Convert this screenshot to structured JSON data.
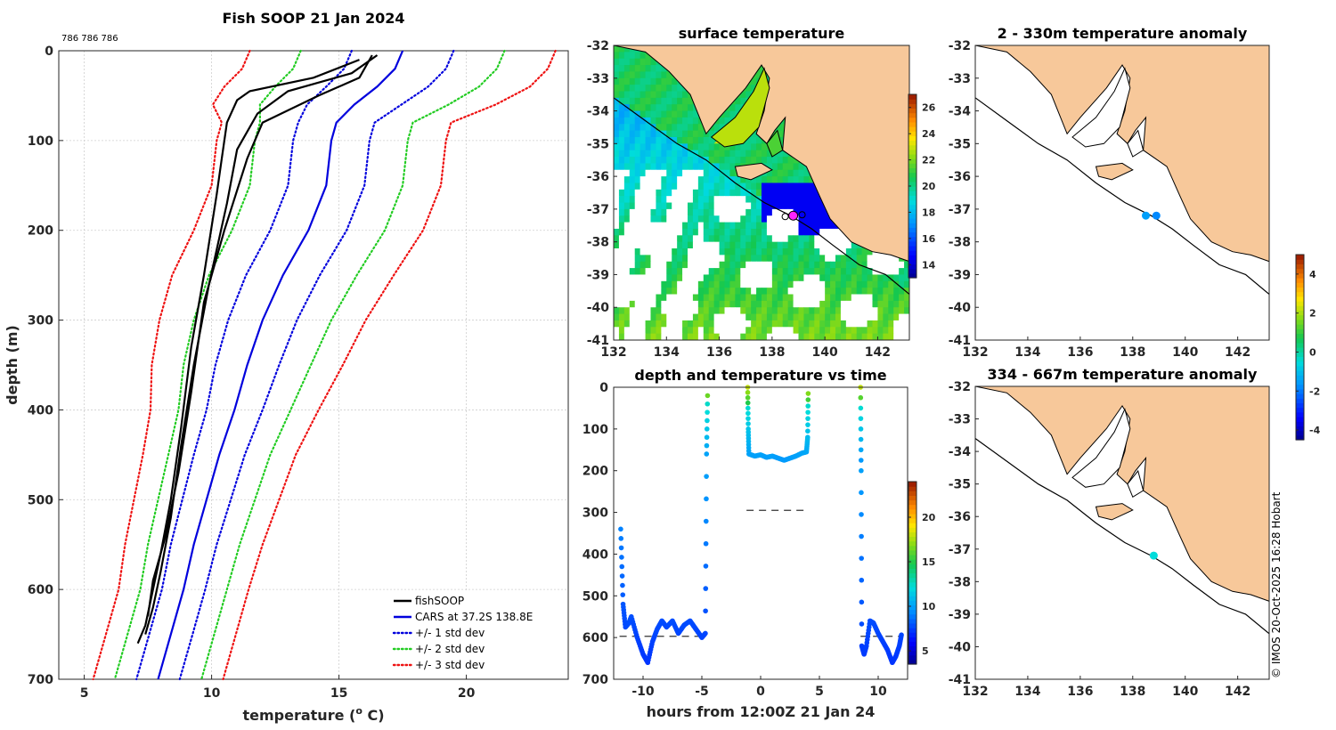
{
  "chart_data": [
    {
      "type": "line",
      "title": "Fish SOOP 21 Jan 2024",
      "annotation": "786 786 786",
      "xlabel": "temperature (",
      "xlabel_sup": "o",
      "xlabel_end": " C)",
      "ylabel": "depth (m)",
      "xlim": [
        4,
        24
      ],
      "ylim": [
        0,
        700
      ],
      "xticks": [
        5,
        10,
        15,
        20
      ],
      "yticks": [
        0,
        100,
        200,
        300,
        400,
        500,
        600,
        700
      ],
      "legend": [
        {
          "label": "fishSOOP",
          "color": "#000000",
          "style": "solid"
        },
        {
          "label": "CARS at 37.2S 138.8E",
          "color": "#0000dd",
          "style": "solid"
        },
        {
          "label": "+/- 1 std dev",
          "color": "#0000dd",
          "style": "dotted"
        },
        {
          "label": "+/- 2 std dev",
          "color": "#22cc22",
          "style": "dotted"
        },
        {
          "label": "+/- 3 std dev",
          "color": "#ee1111",
          "style": "dotted"
        }
      ],
      "depths": [
        0,
        20,
        40,
        60,
        80,
        100,
        150,
        200,
        250,
        300,
        350,
        400,
        450,
        500,
        550,
        600,
        650,
        700
      ],
      "cars_mean": [
        17.5,
        17.2,
        16.5,
        15.6,
        14.9,
        14.7,
        14.5,
        13.8,
        12.8,
        12.0,
        11.4,
        10.9,
        10.3,
        9.8,
        9.3,
        8.9,
        8.4,
        7.9
      ],
      "cars_std1": [
        2.0,
        2.0,
        2.0,
        1.85,
        1.5,
        1.5,
        1.5,
        1.5,
        1.45,
        1.35,
        1.25,
        1.1,
        1.0,
        0.95,
        0.9,
        0.85,
        0.85,
        0.85
      ],
      "fishsoop_casts": [
        {
          "depths": [
            10,
            30,
            45,
            55,
            80,
            120,
            160,
            250,
            330,
            420,
            500,
            560,
            600,
            640,
            660
          ],
          "temps": [
            15.8,
            14.0,
            11.5,
            11.0,
            10.6,
            10.4,
            10.2,
            9.7,
            9.2,
            8.8,
            8.4,
            8.0,
            7.7,
            7.4,
            7.1
          ]
        },
        {
          "depths": [
            5,
            25,
            45,
            70,
            110,
            170,
            260,
            350,
            440,
            520,
            580,
            620,
            650
          ],
          "temps": [
            16.5,
            15.5,
            13.0,
            11.8,
            11.0,
            10.6,
            9.9,
            9.3,
            8.8,
            8.4,
            8.0,
            7.7,
            7.4
          ]
        },
        {
          "depths": [
            5,
            30,
            50,
            80,
            120,
            200,
            280,
            380,
            470,
            540,
            590,
            630
          ],
          "temps": [
            16.3,
            15.8,
            14.2,
            12.0,
            11.4,
            10.5,
            9.7,
            9.2,
            8.7,
            8.2,
            7.7,
            7.5
          ]
        }
      ]
    },
    {
      "type": "heatmap",
      "title": "surface temperature",
      "xlim": [
        132,
        143.2
      ],
      "ylim": [
        -41,
        -32
      ],
      "xticks": [
        132,
        134,
        136,
        138,
        140,
        142
      ],
      "yticks": [
        -32,
        -33,
        -34,
        -35,
        -36,
        -37,
        -38,
        -39,
        -40,
        -41
      ],
      "colorbar_ticks": [
        14,
        16,
        18,
        20,
        22,
        24,
        26
      ],
      "colorbar_range": [
        13,
        27
      ],
      "markers": [
        {
          "lon": 138.8,
          "lat": -37.2
        }
      ]
    },
    {
      "type": "heatmap",
      "title": "2 - 330m temperature anomaly",
      "xlim": [
        132,
        143.2
      ],
      "ylim": [
        -41,
        -32
      ],
      "xticks": [
        132,
        134,
        136,
        138,
        140,
        142
      ],
      "yticks": [
        -32,
        -33,
        -34,
        -35,
        -36,
        -37,
        -38,
        -39,
        -40,
        -41
      ],
      "points": [
        {
          "lon": 138.5,
          "lat": -37.2,
          "value": -1.5
        },
        {
          "lon": 138.9,
          "lat": -37.2,
          "value": -1.8
        }
      ]
    },
    {
      "type": "heatmap",
      "title": "334 - 667m temperature anomaly",
      "xlim": [
        132,
        143.2
      ],
      "ylim": [
        -41,
        -32
      ],
      "xticks": [
        132,
        134,
        136,
        138,
        140,
        142
      ],
      "yticks": [
        -32,
        -33,
        -34,
        -35,
        -36,
        -37,
        -38,
        -39,
        -40,
        -41
      ],
      "points": [
        {
          "lon": 138.8,
          "lat": -37.2,
          "value": -0.5
        }
      ],
      "colorbar_ticks": [
        -4,
        -2,
        0,
        2,
        4
      ],
      "colorbar_range": [
        -4.5,
        5
      ]
    },
    {
      "type": "scatter",
      "title": "depth and temperature vs time",
      "xlabel": "hours from 12:00Z 21 Jan 24",
      "xlim": [
        -12.5,
        12.5
      ],
      "ylim": [
        0,
        700
      ],
      "xticks": [
        -10,
        -5,
        0,
        5,
        10
      ],
      "yticks": [
        0,
        100,
        200,
        300,
        400,
        500,
        600,
        700
      ],
      "colorbar_ticks": [
        5,
        10,
        15,
        20
      ],
      "colorbar_range": [
        3.5,
        24
      ],
      "dashed_levels": [
        {
          "x0": -12,
          "x1": -4.6,
          "depth": 597
        },
        {
          "x0": -1.2,
          "x1": 4.0,
          "depth": 295
        },
        {
          "x0": 8.5,
          "x1": 12,
          "depth": 597
        }
      ],
      "segments": [
        {
          "hours": [
            -11.9,
            -11.7,
            -11.5,
            -11.2,
            -11,
            -10.5,
            -10,
            -9.6,
            -9.2,
            -8.8,
            -8.4,
            -8,
            -7.5,
            -7,
            -6.5,
            -6,
            -5.5,
            -5,
            -4.7,
            -4.6,
            -4.5
          ],
          "depths": [
            340,
            520,
            575,
            565,
            550,
            600,
            640,
            660,
            610,
            580,
            560,
            575,
            560,
            590,
            570,
            560,
            580,
            600,
            590,
            160,
            0
          ]
        },
        {
          "hours": [
            -1.1,
            -1.05,
            -1,
            -0.5,
            0,
            0.5,
            1,
            1.5,
            2,
            2.5,
            3,
            3.5,
            3.9,
            4,
            4.05
          ],
          "depths": [
            0,
            100,
            160,
            165,
            162,
            168,
            165,
            170,
            175,
            170,
            165,
            158,
            155,
            120,
            0
          ]
        },
        {
          "hours": [
            8.5,
            8.55,
            8.6,
            8.8,
            9,
            9.3,
            9.6,
            10,
            10.4,
            10.8,
            11.2,
            11.5,
            11.8,
            12
          ],
          "depths": [
            0,
            200,
            620,
            640,
            620,
            560,
            565,
            590,
            610,
            630,
            660,
            645,
            620,
            590
          ]
        }
      ]
    }
  ],
  "copyright": "© IMOS 20-Oct-2025 16:28 Hobart"
}
